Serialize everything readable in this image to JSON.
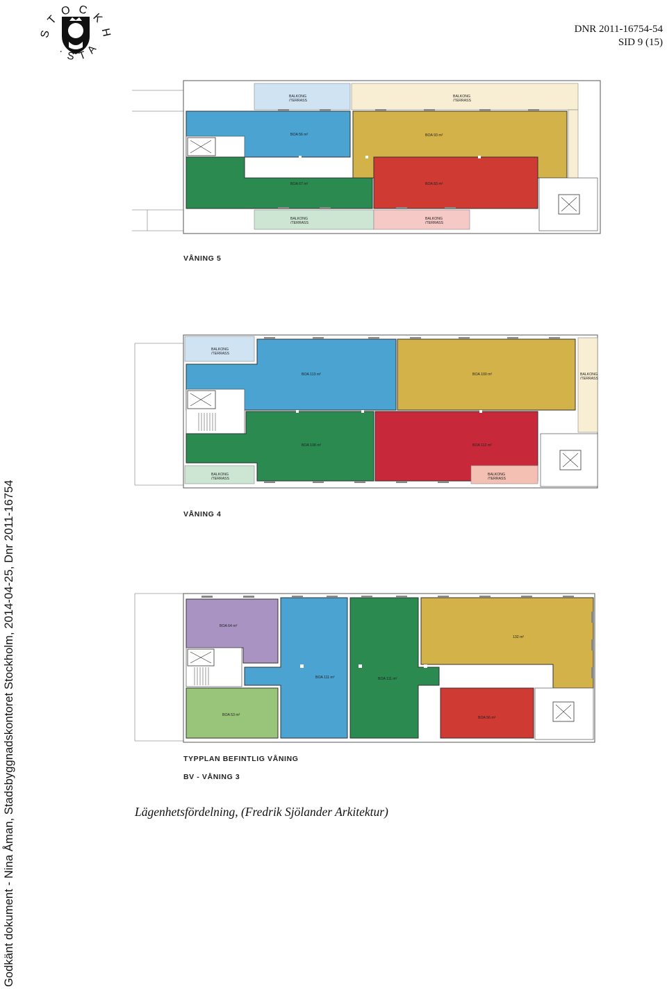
{
  "header": {
    "dnr": "DNR 2011-16754-54",
    "sid": "SID 9 (15)",
    "logo_text": "STOCKHOLMS STAD"
  },
  "sidebar_text": "Godkänt dokument - Nina Åman, Stadsbyggnadskontoret Stockholm, 2014-04-25, Dnr 2011-16754",
  "caption": "Lägenhetsfördelning, (Fredrik Sjölander Arkitektur)",
  "plans": {
    "v5": {
      "title": "VÅNING 5",
      "balkong_top_left": [
        "BALKONG",
        "/TERRASS"
      ],
      "balkong_top_right": [
        "BALKONG",
        "/TERRASS"
      ],
      "balkong_bottom_left": [
        "BALKONG",
        "/TERRASS"
      ],
      "balkong_bottom_right": [
        "BALKONG",
        "/TERRASS"
      ],
      "blue": "BOA 56 m²",
      "yellow": "BOA 93 m²",
      "green": "BOA 67 m²",
      "red": "BOA 83 m²"
    },
    "v4": {
      "title": "VÅNING 4",
      "balkong_top_left": [
        "BALKONG",
        "/TERRASS"
      ],
      "balkong_right": [
        "BALKONG",
        "/TERRASS"
      ],
      "balkong_bottom_left": [
        "BALKONG",
        "/TERRASS"
      ],
      "balkong_bottom_right": [
        "BALKONG",
        "/TERRASS"
      ],
      "blue": "BOA 113 m²",
      "yellow": "BOA 100 m²",
      "green": "BOA 108 m²",
      "red": "BOA 112 m²"
    },
    "v3": {
      "title1": "TYPPLAN BEFINTLIG VÅNING",
      "title2": "BV - VÅNING 3",
      "purple": "BOA 64 m²",
      "blue": "BOA 111 m²",
      "green_dark": "BOA 111 m²",
      "yellow": "132 m²",
      "green_light": "BOA 53 m²",
      "red": "BOA 56 m²"
    }
  },
  "colors": {
    "blue": "#4aa3d1",
    "yellow": "#d4b24a",
    "green": "#2a8a50",
    "red": "#cf3a33",
    "purple": "#a893c3",
    "light_green": "#98c57a",
    "balkong_blue": "#cfe3f3",
    "balkong_cream": "#f7eed3",
    "balkong_green": "#cde6d4",
    "balkong_pink": "#f5c9c6"
  }
}
